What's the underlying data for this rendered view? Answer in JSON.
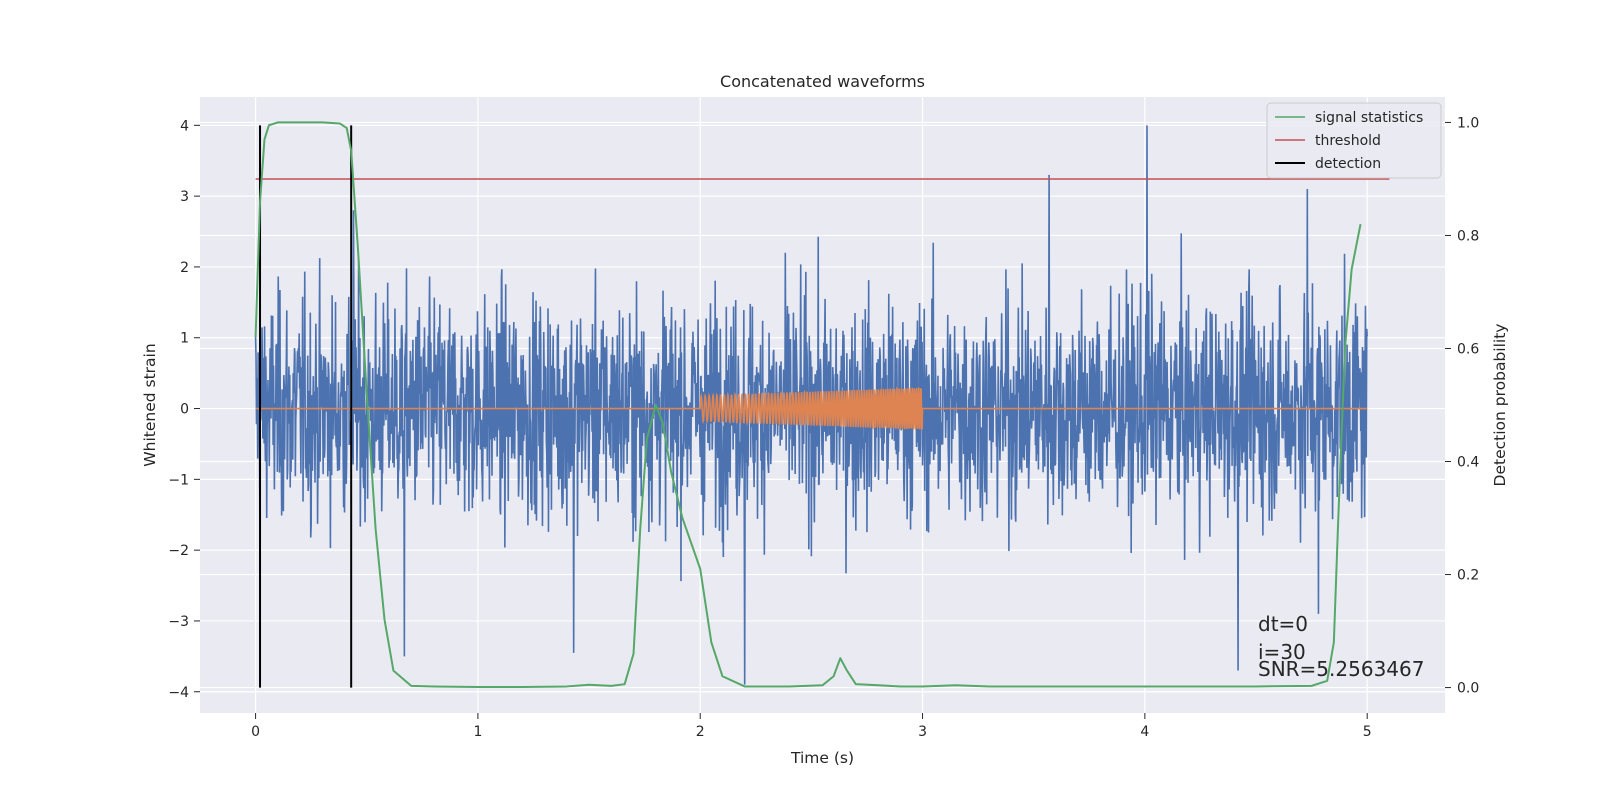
{
  "chart_data": {
    "type": "line",
    "title": "Concatenated waveforms",
    "xlabel": "Time (s)",
    "ylabel": "Whitened strain",
    "y2label": "Detection probability",
    "xlim": [
      -0.25,
      5.35
    ],
    "ylim": [
      -4.3,
      4.4
    ],
    "y2lim": [
      -0.045,
      1.045
    ],
    "xticks": [
      0,
      1,
      2,
      3,
      4,
      5
    ],
    "yticks": [
      -4,
      -3,
      -2,
      -1,
      0,
      1,
      2,
      3,
      4
    ],
    "y2ticks": [
      0.0,
      0.2,
      0.4,
      0.6,
      0.8,
      1.0
    ],
    "grid": true,
    "legend_position": "top-right",
    "legend": [
      {
        "label": "signal statistics",
        "color": "#55a868"
      },
      {
        "label": "threshold",
        "color": "#c44e52"
      },
      {
        "label": "detection",
        "color": "#000000"
      }
    ],
    "colors": {
      "strain": "#4c72b0",
      "injection": "#dd8452",
      "signal_statistics": "#55a868",
      "threshold": "#c44e52",
      "detection": "#000000",
      "plot_background": "#eaeaf2",
      "grid": "#ffffff"
    },
    "strain": {
      "x_start": 0,
      "x_end": 5,
      "typical_amplitude": 2.0,
      "peak_max": 4.0,
      "peak_min": -3.9
    },
    "injection": {
      "x_start": 2.0,
      "x_end": 3.0,
      "amp_start": 0.18,
      "amp_end": 0.3,
      "baseline": 0
    },
    "threshold": {
      "value": 0.9,
      "x_start": 0,
      "x_end": 5.1
    },
    "detections": [
      0.02,
      0.43
    ],
    "signal_statistics": {
      "x": [
        0,
        0.02,
        0.04,
        0.06,
        0.1,
        0.2,
        0.3,
        0.38,
        0.41,
        0.43,
        0.46,
        0.5,
        0.54,
        0.58,
        0.62,
        0.7,
        0.8,
        1.0,
        1.2,
        1.4,
        1.5,
        1.6,
        1.66,
        1.7,
        1.73,
        1.76,
        1.8,
        1.83,
        1.87,
        1.92,
        2.0,
        2.05,
        2.1,
        2.2,
        2.4,
        2.55,
        2.6,
        2.63,
        2.66,
        2.7,
        2.8,
        2.9,
        3.0,
        3.15,
        3.3,
        3.5,
        4.0,
        4.5,
        4.75,
        4.82,
        4.85,
        4.87,
        4.9,
        4.93,
        4.97
      ],
      "y": [
        0.62,
        0.86,
        0.97,
        0.995,
        1.0,
        1.0,
        1.0,
        0.998,
        0.99,
        0.95,
        0.78,
        0.52,
        0.28,
        0.12,
        0.03,
        0.003,
        0.002,
        0.001,
        0.001,
        0.002,
        0.005,
        0.003,
        0.006,
        0.06,
        0.28,
        0.44,
        0.5,
        0.47,
        0.38,
        0.3,
        0.21,
        0.08,
        0.02,
        0.002,
        0.002,
        0.004,
        0.02,
        0.052,
        0.03,
        0.006,
        0.004,
        0.002,
        0.002,
        0.004,
        0.002,
        0.002,
        0.002,
        0.002,
        0.003,
        0.012,
        0.08,
        0.3,
        0.6,
        0.74,
        0.82
      ]
    },
    "annotations": [
      "dt=0",
      "i=30",
      "SNR=5.2563467"
    ]
  }
}
